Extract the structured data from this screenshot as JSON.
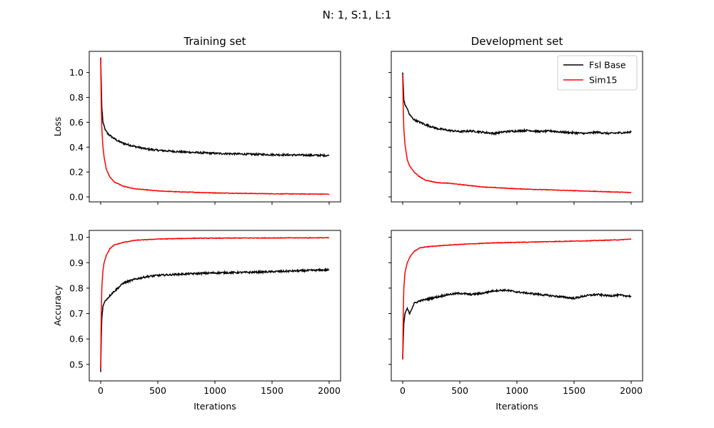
{
  "figure": {
    "suptitle": "N: 1, S:1, L:1"
  },
  "legend": {
    "entries": [
      {
        "label": "Fsl Base",
        "color": "#000000"
      },
      {
        "label": "Sim15",
        "color": "#ff0000"
      }
    ],
    "placement": "top-right of Development set loss panel"
  },
  "chart_data": [
    {
      "type": "line",
      "panel": "training-loss",
      "title": "Training set",
      "xlabel": "",
      "ylabel": "Loss",
      "xlim": [
        -100,
        2100
      ],
      "ylim": [
        -0.04,
        1.17
      ],
      "xticks": [
        0,
        500,
        1000,
        1500,
        2000
      ],
      "yticks": [
        0.0,
        0.2,
        0.4,
        0.6,
        0.8,
        1.0
      ],
      "show_xticklabels": false,
      "show_yticklabels": true,
      "grid": false,
      "series": [
        {
          "name": "Fsl Base",
          "color": "#000000",
          "points": [
            [
              0,
              1.12
            ],
            [
              10,
              0.72
            ],
            [
              20,
              0.6
            ],
            [
              40,
              0.54
            ],
            [
              60,
              0.51
            ],
            [
              100,
              0.48
            ],
            [
              150,
              0.45
            ],
            [
              200,
              0.43
            ],
            [
              300,
              0.405
            ],
            [
              400,
              0.385
            ],
            [
              500,
              0.375
            ],
            [
              700,
              0.362
            ],
            [
              1000,
              0.35
            ],
            [
              1300,
              0.343
            ],
            [
              1600,
              0.338
            ],
            [
              2000,
              0.333
            ]
          ]
        },
        {
          "name": "Sim15",
          "color": "#ff0000",
          "points": [
            [
              0,
              1.12
            ],
            [
              5,
              0.75
            ],
            [
              10,
              0.55
            ],
            [
              20,
              0.4
            ],
            [
              30,
              0.32
            ],
            [
              50,
              0.22
            ],
            [
              80,
              0.16
            ],
            [
              120,
              0.12
            ],
            [
              200,
              0.085
            ],
            [
              300,
              0.065
            ],
            [
              500,
              0.048
            ],
            [
              700,
              0.04
            ],
            [
              1000,
              0.032
            ],
            [
              1500,
              0.025
            ],
            [
              2000,
              0.022
            ]
          ]
        }
      ]
    },
    {
      "type": "line",
      "panel": "development-loss",
      "title": "Development set",
      "xlabel": "",
      "ylabel": "",
      "xlim": [
        -100,
        2100
      ],
      "ylim": [
        -0.04,
        1.17
      ],
      "xticks": [
        0,
        500,
        1000,
        1500,
        2000
      ],
      "yticks": [
        0.0,
        0.2,
        0.4,
        0.6,
        0.8,
        1.0
      ],
      "show_xticklabels": false,
      "show_yticklabels": false,
      "grid": false,
      "series": [
        {
          "name": "Fsl Base",
          "color": "#000000",
          "points": [
            [
              0,
              1.0
            ],
            [
              10,
              0.78
            ],
            [
              20,
              0.74
            ],
            [
              40,
              0.71
            ],
            [
              60,
              0.66
            ],
            [
              100,
              0.62
            ],
            [
              150,
              0.6
            ],
            [
              200,
              0.58
            ],
            [
              300,
              0.55
            ],
            [
              400,
              0.535
            ],
            [
              500,
              0.525
            ],
            [
              600,
              0.53
            ],
            [
              700,
              0.52
            ],
            [
              800,
              0.51
            ],
            [
              900,
              0.525
            ],
            [
              1000,
              0.53
            ],
            [
              1100,
              0.535
            ],
            [
              1200,
              0.525
            ],
            [
              1300,
              0.53
            ],
            [
              1400,
              0.52
            ],
            [
              1500,
              0.515
            ],
            [
              1600,
              0.51
            ],
            [
              1700,
              0.52
            ],
            [
              1800,
              0.51
            ],
            [
              1900,
              0.515
            ],
            [
              2000,
              0.52
            ]
          ]
        },
        {
          "name": "Sim15",
          "color": "#ff0000",
          "points": [
            [
              0,
              0.98
            ],
            [
              5,
              0.7
            ],
            [
              10,
              0.55
            ],
            [
              20,
              0.42
            ],
            [
              40,
              0.3
            ],
            [
              60,
              0.25
            ],
            [
              100,
              0.2
            ],
            [
              150,
              0.16
            ],
            [
              200,
              0.135
            ],
            [
              300,
              0.115
            ],
            [
              400,
              0.11
            ],
            [
              500,
              0.1
            ],
            [
              700,
              0.08
            ],
            [
              1000,
              0.065
            ],
            [
              1500,
              0.05
            ],
            [
              2000,
              0.035
            ]
          ]
        }
      ]
    },
    {
      "type": "line",
      "panel": "training-accuracy",
      "title": "",
      "xlabel": "Iterations",
      "ylabel": "Accuracy",
      "xlim": [
        -100,
        2100
      ],
      "ylim": [
        0.435,
        1.027
      ],
      "xticks": [
        0,
        500,
        1000,
        1500,
        2000
      ],
      "yticks": [
        0.5,
        0.6,
        0.7,
        0.8,
        0.9,
        1.0
      ],
      "show_xticklabels": true,
      "show_yticklabels": true,
      "grid": false,
      "series": [
        {
          "name": "Fsl Base",
          "color": "#000000",
          "points": [
            [
              0,
              0.47
            ],
            [
              5,
              0.6
            ],
            [
              10,
              0.68
            ],
            [
              20,
              0.73
            ],
            [
              40,
              0.75
            ],
            [
              60,
              0.76
            ],
            [
              100,
              0.78
            ],
            [
              150,
              0.8
            ],
            [
              200,
              0.82
            ],
            [
              300,
              0.835
            ],
            [
              400,
              0.845
            ],
            [
              500,
              0.85
            ],
            [
              700,
              0.855
            ],
            [
              1000,
              0.86
            ],
            [
              1300,
              0.862
            ],
            [
              1600,
              0.866
            ],
            [
              2000,
              0.872
            ]
          ]
        },
        {
          "name": "Sim15",
          "color": "#ff0000",
          "points": [
            [
              0,
              0.48
            ],
            [
              5,
              0.7
            ],
            [
              10,
              0.8
            ],
            [
              20,
              0.87
            ],
            [
              30,
              0.9
            ],
            [
              50,
              0.93
            ],
            [
              80,
              0.955
            ],
            [
              120,
              0.97
            ],
            [
              200,
              0.98
            ],
            [
              300,
              0.988
            ],
            [
              500,
              0.993
            ],
            [
              800,
              0.996
            ],
            [
              1200,
              0.997
            ],
            [
              2000,
              0.998
            ]
          ]
        }
      ]
    },
    {
      "type": "line",
      "panel": "development-accuracy",
      "title": "",
      "xlabel": "Iterations",
      "ylabel": "",
      "xlim": [
        -100,
        2100
      ],
      "ylim": [
        0.435,
        1.027
      ],
      "xticks": [
        0,
        500,
        1000,
        1500,
        2000
      ],
      "yticks": [
        0.5,
        0.6,
        0.7,
        0.8,
        0.9,
        1.0
      ],
      "show_xticklabels": true,
      "show_yticklabels": false,
      "grid": false,
      "series": [
        {
          "name": "Fsl Base",
          "color": "#000000",
          "points": [
            [
              0,
              0.52
            ],
            [
              5,
              0.6
            ],
            [
              10,
              0.66
            ],
            [
              20,
              0.7
            ],
            [
              40,
              0.72
            ],
            [
              60,
              0.7
            ],
            [
              100,
              0.74
            ],
            [
              150,
              0.75
            ],
            [
              200,
              0.755
            ],
            [
              300,
              0.765
            ],
            [
              400,
              0.775
            ],
            [
              500,
              0.78
            ],
            [
              600,
              0.775
            ],
            [
              700,
              0.78
            ],
            [
              800,
              0.79
            ],
            [
              900,
              0.792
            ],
            [
              1000,
              0.785
            ],
            [
              1100,
              0.78
            ],
            [
              1200,
              0.775
            ],
            [
              1300,
              0.77
            ],
            [
              1400,
              0.765
            ],
            [
              1500,
              0.76
            ],
            [
              1600,
              0.77
            ],
            [
              1700,
              0.775
            ],
            [
              1800,
              0.77
            ],
            [
              1900,
              0.772
            ],
            [
              2000,
              0.768
            ]
          ]
        },
        {
          "name": "Sim15",
          "color": "#ff0000",
          "points": [
            [
              0,
              0.52
            ],
            [
              5,
              0.7
            ],
            [
              10,
              0.8
            ],
            [
              20,
              0.86
            ],
            [
              40,
              0.9
            ],
            [
              60,
              0.92
            ],
            [
              100,
              0.945
            ],
            [
              150,
              0.958
            ],
            [
              200,
              0.962
            ],
            [
              300,
              0.966
            ],
            [
              500,
              0.972
            ],
            [
              800,
              0.978
            ],
            [
              1000,
              0.98
            ],
            [
              1300,
              0.983
            ],
            [
              1600,
              0.986
            ],
            [
              1900,
              0.99
            ],
            [
              2000,
              0.993
            ]
          ]
        }
      ]
    }
  ]
}
